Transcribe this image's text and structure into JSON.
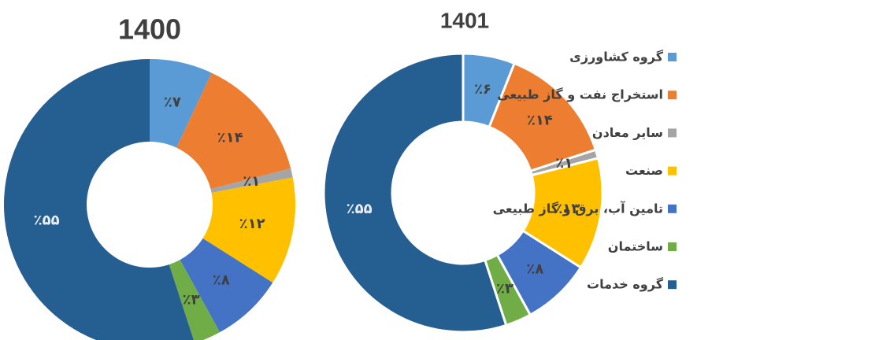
{
  "legend": {
    "categories": [
      "گروه کشاورزی",
      "استخراج نفت و گاز طبیعی",
      "سایر معادن",
      "صنعت",
      "تامین آب، برق و گاز طبیعی",
      "ساختمان",
      "گروه خدمات"
    ],
    "colors": [
      "#5b9bd5",
      "#ed7d31",
      "#a5a5a5",
      "#ffc000",
      "#4472c4",
      "#70ad47",
      "#255e91"
    ]
  },
  "chart_data": [
    {
      "type": "pie",
      "title": "1400",
      "values": [
        7,
        14,
        1,
        12,
        8,
        3,
        55
      ],
      "value_labels": [
        "٪۷",
        "٪۱۴",
        "٪۱",
        "٪۱۲",
        "٪۸",
        "٪۳",
        "٪۵۵"
      ]
    },
    {
      "type": "pie",
      "title": "1401",
      "values": [
        6,
        14,
        1,
        13,
        8,
        3,
        55
      ],
      "value_labels": [
        "٪۶",
        "٪۱۴",
        "٪۱",
        "٪۱۳",
        "٪۸",
        "٪۳",
        "٪۵۵"
      ]
    }
  ]
}
